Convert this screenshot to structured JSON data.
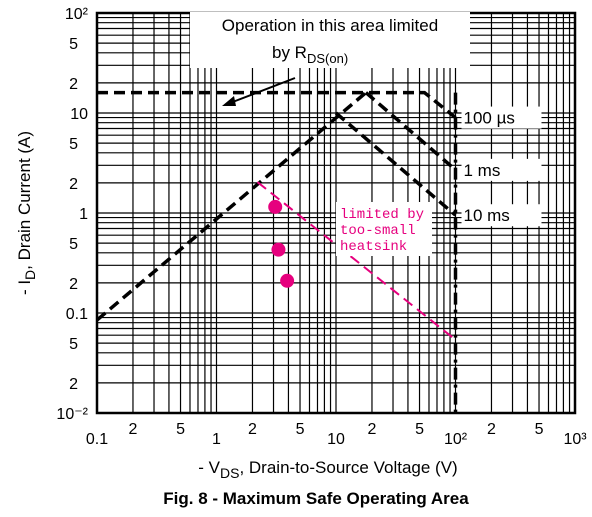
{
  "chart_data": {
    "type": "line",
    "title": "Fig. 8 - Maximum Safe Operating Area",
    "x_label": [
      "- V",
      "DS",
      ", Drain-to-Source Voltage (V)"
    ],
    "y_label": [
      "- I",
      "D",
      ", Drain Current (A)"
    ],
    "xlog": true,
    "ylog": true,
    "xlim": [
      0.1,
      1000
    ],
    "ylim": [
      0.01,
      100
    ],
    "xticks": [
      0.1,
      {
        "value": 0.2,
        "label": "2"
      },
      {
        "value": 0.5,
        "label": "5"
      },
      1,
      {
        "value": 2,
        "label": "2"
      },
      {
        "value": 5,
        "label": "5"
      },
      10,
      {
        "value": 20,
        "label": "2"
      },
      {
        "value": 50,
        "label": "5"
      },
      {
        "value": 100,
        "label": "10²"
      },
      {
        "value": 200,
        "label": "2"
      },
      {
        "value": 500,
        "label": "5"
      },
      {
        "value": 1000,
        "label": "10³"
      }
    ],
    "yticks": [
      {
        "value": 0.01,
        "label": "10⁻²"
      },
      {
        "value": 0.02,
        "label": "2"
      },
      {
        "value": 0.05,
        "label": "5"
      },
      0.1,
      {
        "value": 0.2,
        "label": "2"
      },
      {
        "value": 0.5,
        "label": "5"
      },
      1,
      {
        "value": 2,
        "label": "2"
      },
      {
        "value": 5,
        "label": "5"
      },
      10,
      {
        "value": 20,
        "label": "2"
      },
      {
        "value": 50,
        "label": "5"
      },
      {
        "value": 100,
        "label": "10²"
      }
    ],
    "xgrid": [
      0.1,
      0.2,
      0.3,
      0.4,
      0.5,
      0.6,
      0.7,
      0.8,
      0.9,
      1,
      2,
      3,
      4,
      5,
      6,
      7,
      8,
      9,
      10,
      20,
      30,
      40,
      50,
      60,
      70,
      80,
      90,
      100,
      200,
      300,
      400,
      500,
      600,
      700,
      800,
      900,
      1000
    ],
    "ygrid": [
      0.01,
      0.02,
      0.03,
      0.04,
      0.05,
      0.06,
      0.07,
      0.08,
      0.09,
      0.1,
      0.2,
      0.3,
      0.4,
      0.5,
      0.6,
      0.7,
      0.8,
      0.9,
      1,
      2,
      3,
      4,
      5,
      6,
      7,
      8,
      9,
      10,
      20,
      30,
      40,
      50,
      60,
      70,
      80,
      90,
      100
    ],
    "series": [
      {
        "x": [
          0.1,
          17.8
        ],
        "values": [
          0.085,
          16
        ],
        "color": "#000000",
        "dash": "dashed"
      },
      {
        "name": "100 µs",
        "x": [
          0.1,
          55,
          100
        ],
        "values": [
          16,
          16,
          9
        ],
        "color": "#000000",
        "dash": "dashed"
      },
      {
        "name": "1 ms",
        "x": [
          17.8,
          100
        ],
        "values": [
          16,
          2.7
        ],
        "color": "#000000",
        "dash": "dashed"
      },
      {
        "name": "10 ms",
        "x": [
          10,
          100
        ],
        "values": [
          10,
          0.95
        ],
        "color": "#000000",
        "dash": "dashed"
      },
      {
        "x": [
          100,
          100
        ],
        "values": [
          16,
          0.01
        ],
        "color": "#000000",
        "dash": "dashdot"
      },
      {
        "x": [
          2.2,
          100
        ],
        "values": [
          2.04,
          0.054
        ],
        "color": "#e6007e",
        "dash": "dashed"
      }
    ],
    "points": {
      "x": [
        3.1,
        3.3,
        3.9
      ],
      "values": [
        1.15,
        0.43,
        0.21
      ],
      "color": "#e6007e"
    },
    "annotations": [
      "Operation in this area limited",
      "by R",
      "DS(on)",
      "limited by",
      "too-small",
      "heatsink"
    ]
  }
}
